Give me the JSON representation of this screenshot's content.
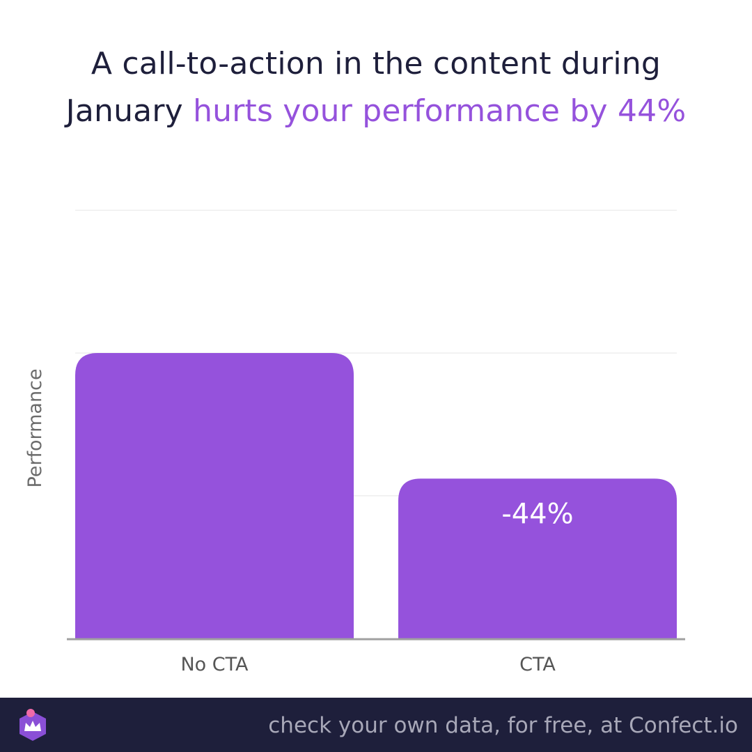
{
  "headline": {
    "line1": "A call-to-action in the content during",
    "line2_plain": "January",
    "line2_accent": "hurts your performance by 44%"
  },
  "chart_data": {
    "type": "bar",
    "categories": [
      "No CTA",
      "CTA"
    ],
    "values": [
      100,
      56
    ],
    "bar_labels": [
      "",
      "-44%"
    ],
    "ylabel": "Performance",
    "ylim": [
      0,
      150
    ],
    "grid": true,
    "bar_color": "#9552dc"
  },
  "footer": {
    "text": "check your own data, for free, at Confect.io"
  },
  "colors": {
    "accent": "#9552dc",
    "dark": "#1e1f3b",
    "logo_dot": "#f06aa8"
  },
  "logo": {
    "icon": "confect-crown-icon"
  }
}
